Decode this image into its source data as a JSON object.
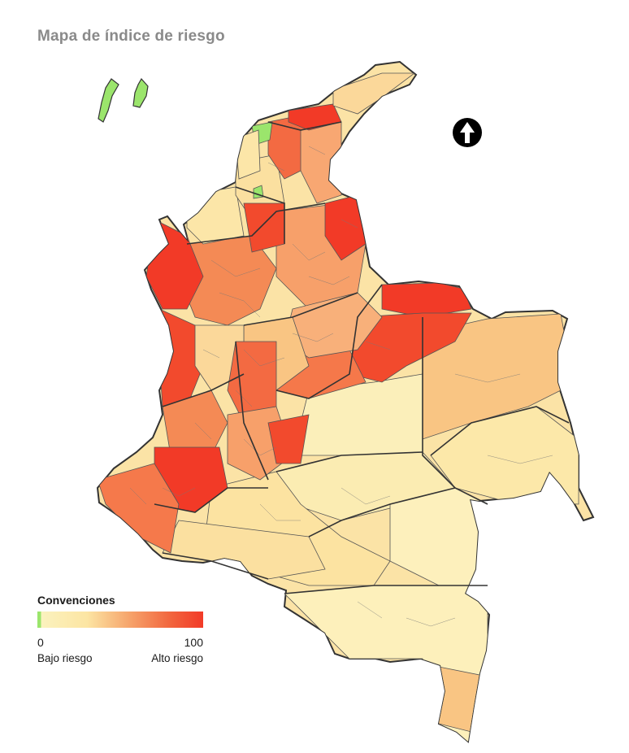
{
  "title": "Mapa de índice de riesgo",
  "legend": {
    "title": "Convenciones",
    "min": "0",
    "max": "100",
    "low_label": "Bajo riesgo",
    "high_label": "Alto riesgo"
  },
  "north_arrow": {
    "icon": "north-arrow-icon"
  },
  "colors": {
    "no_data_green": "#9be56c",
    "very_low": "#fbf1bb",
    "low": "#fbe09d",
    "medium": "#f9b77b",
    "high": "#f3814e",
    "very_high": "#f23a27",
    "border": "#333333"
  }
}
